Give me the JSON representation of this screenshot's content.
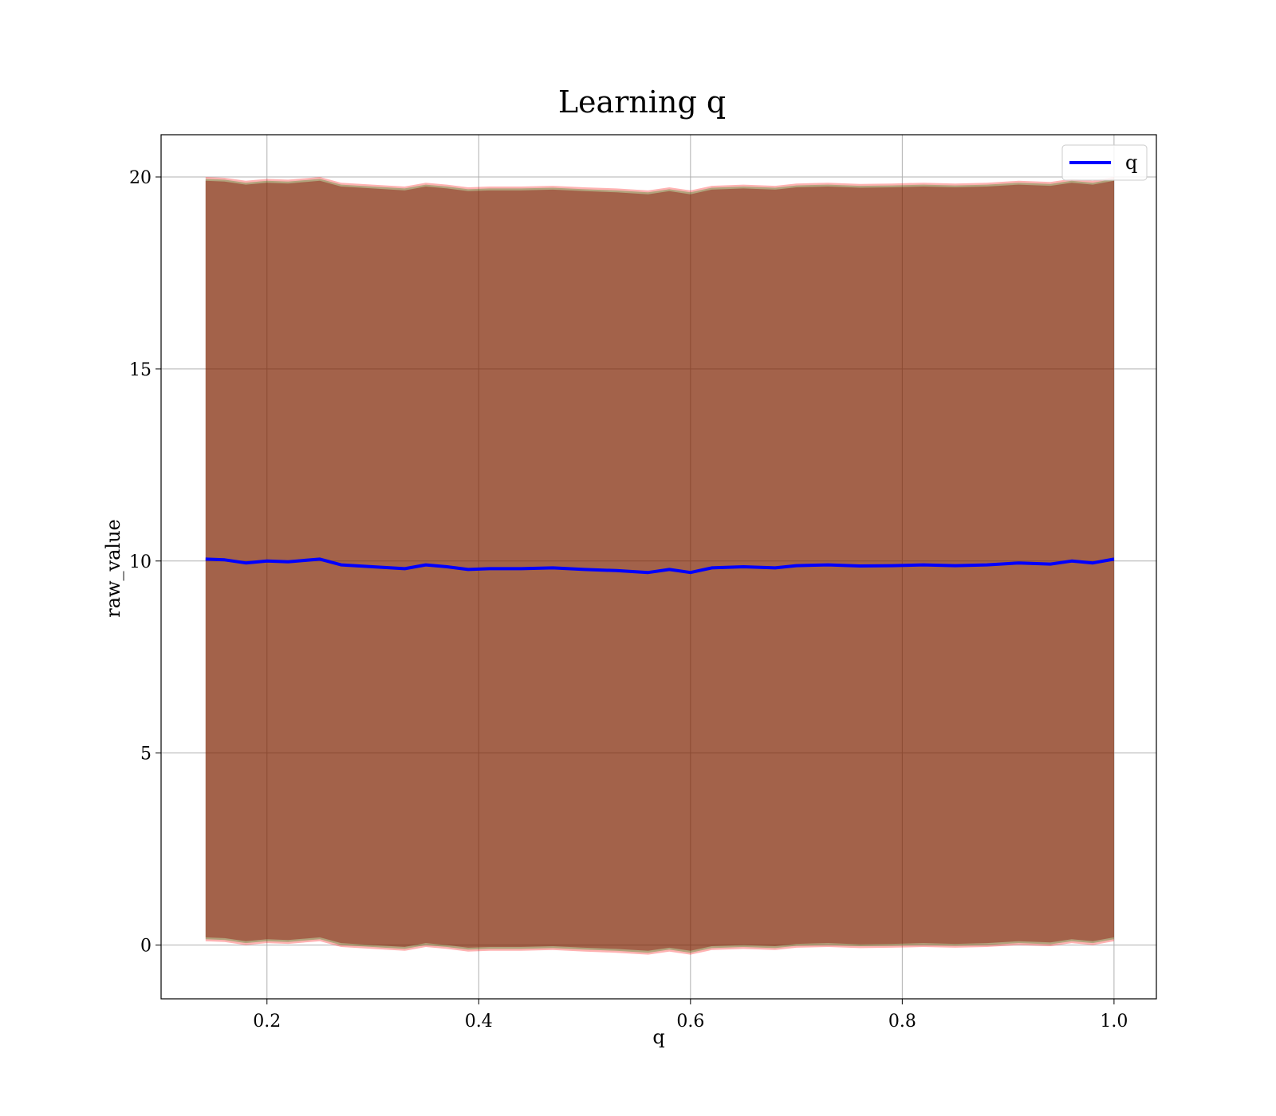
{
  "chart_data": {
    "type": "line",
    "title": "Learning q",
    "xlabel": "q",
    "ylabel": "raw_value",
    "xlim": [
      0.1,
      1.04
    ],
    "ylim": [
      -1.4,
      21.1
    ],
    "xticks": [
      0.2,
      0.4,
      0.6,
      0.8,
      1.0
    ],
    "xtick_labels": [
      "0.2",
      "0.4",
      "0.6",
      "0.8",
      "1.0"
    ],
    "yticks": [
      0,
      5,
      10,
      15,
      20
    ],
    "ytick_labels": [
      "0",
      "5",
      "10",
      "15",
      "20"
    ],
    "grid": true,
    "legend": {
      "position": "top-right",
      "entries": [
        "q"
      ]
    },
    "series": [
      {
        "name": "q",
        "color": "#0000ff",
        "x": [
          0.142,
          0.16,
          0.18,
          0.2,
          0.22,
          0.25,
          0.27,
          0.3,
          0.33,
          0.35,
          0.37,
          0.39,
          0.41,
          0.44,
          0.47,
          0.5,
          0.53,
          0.56,
          0.58,
          0.6,
          0.62,
          0.65,
          0.68,
          0.7,
          0.73,
          0.76,
          0.79,
          0.82,
          0.85,
          0.88,
          0.91,
          0.94,
          0.96,
          0.98,
          1.0
        ],
        "y": [
          10.05,
          10.03,
          9.95,
          10.0,
          9.98,
          10.05,
          9.9,
          9.85,
          9.8,
          9.9,
          9.85,
          9.78,
          9.8,
          9.8,
          9.82,
          9.78,
          9.75,
          9.7,
          9.78,
          9.7,
          9.82,
          9.85,
          9.82,
          9.88,
          9.9,
          9.87,
          9.88,
          9.9,
          9.88,
          9.9,
          9.95,
          9.92,
          10.0,
          9.95,
          10.05
        ]
      }
    ],
    "bands": [
      {
        "color": "#ff0000",
        "opacity": 0.3,
        "offset": 9.95,
        "inner_offset": 9.85
      },
      {
        "color": "#008000",
        "opacity": 0.3,
        "offset": 9.9,
        "inner_offset": 9.8
      },
      {
        "color": "#8b0000",
        "opacity": 0.4,
        "offset": 9.85
      }
    ]
  }
}
